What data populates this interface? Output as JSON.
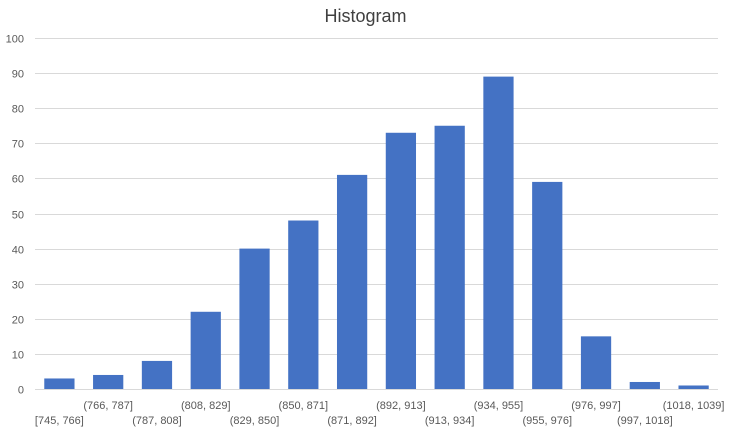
{
  "chart_data": {
    "type": "bar",
    "title": "Histogram",
    "xlabel": "",
    "ylabel": "",
    "ylim": [
      0,
      100
    ],
    "yticks": [
      0,
      10,
      20,
      30,
      40,
      50,
      60,
      70,
      80,
      90,
      100
    ],
    "grid": true,
    "legend": "none",
    "categories": [
      "[745, 766]",
      "(766, 787]",
      "(787, 808]",
      "(808, 829]",
      "(829, 850]",
      "(850, 871]",
      "(871, 892]",
      "(892, 913]",
      "(913, 934]",
      "(934, 955]",
      "(955, 976]",
      "(976, 997]",
      "(997, 1018]",
      "(1018, 1039]"
    ],
    "values": [
      3,
      4,
      8,
      22,
      40,
      48,
      61,
      73,
      75,
      89,
      59,
      15,
      2,
      1
    ],
    "colors": {
      "bar": "#4472c4",
      "grid": "#d9d9d9",
      "text": "#595959",
      "title": "#404040"
    }
  }
}
